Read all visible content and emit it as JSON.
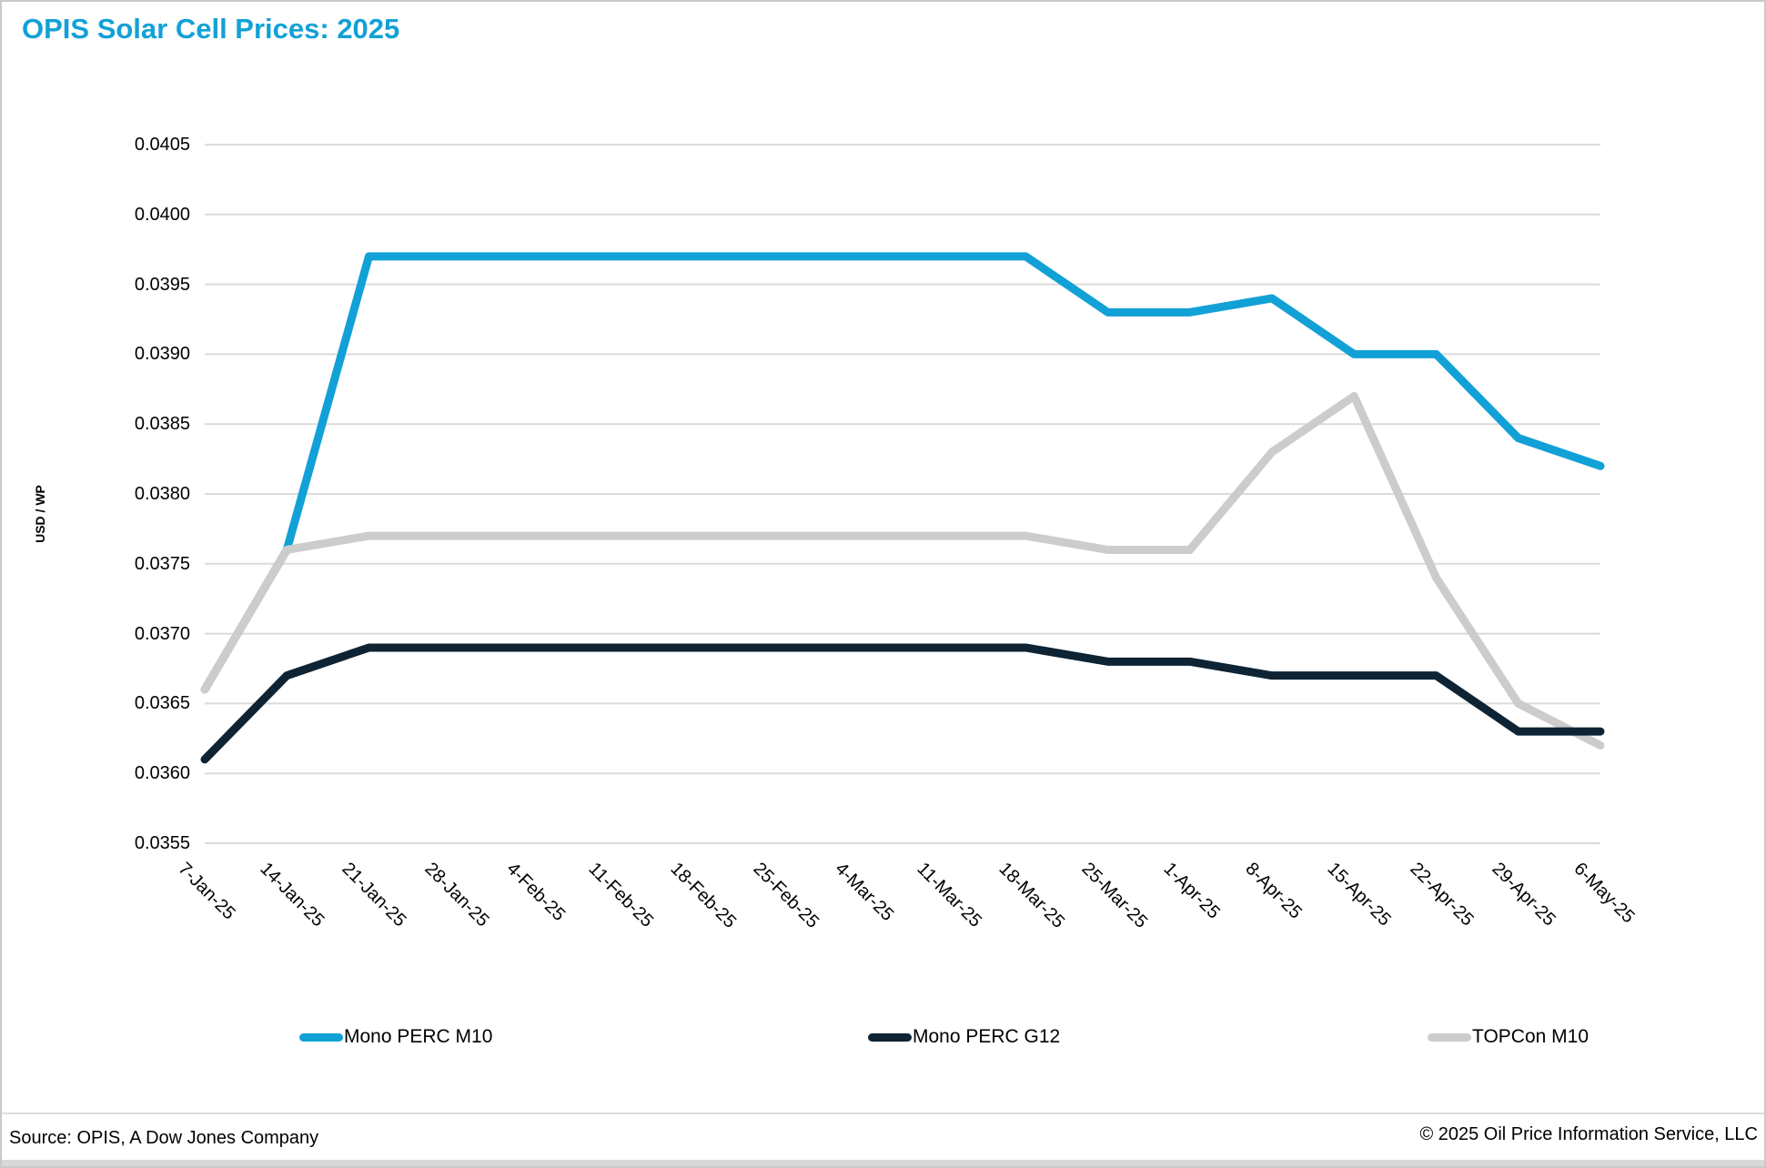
{
  "title": "OPIS Solar Cell Prices: 2025",
  "footer": {
    "source": "Source: OPIS, A Dow Jones Company",
    "copyright": "© 2025 Oil Price Information Service, LLC"
  },
  "colors": {
    "accent_cyan": "#12a1d6",
    "dark_navy": "#0e2333",
    "light_gray": "#cccccc",
    "gridline": "#dbdbdb"
  },
  "chart_data": {
    "type": "line",
    "title": "OPIS Solar Cell Prices: 2025",
    "xlabel": "",
    "ylabel": "USD / WP",
    "ylim": [
      0.0355,
      0.0405
    ],
    "y_tick_step": 0.0005,
    "y_tick_labels": [
      "0.0405",
      "0.0400",
      "0.0395",
      "0.0390",
      "0.0385",
      "0.0380",
      "0.0375",
      "0.0370",
      "0.0365",
      "0.0360",
      "0.0355"
    ],
    "grid": "horizontal",
    "legend_position": "bottom",
    "categories": [
      "7-Jan-25",
      "14-Jan-25",
      "21-Jan-25",
      "28-Jan-25",
      "4-Feb-25",
      "11-Feb-25",
      "18-Feb-25",
      "25-Feb-25",
      "4-Mar-25",
      "11-Mar-25",
      "18-Mar-25",
      "25-Mar-25",
      "1-Apr-25",
      "8-Apr-25",
      "15-Apr-25",
      "22-Apr-25",
      "29-Apr-25",
      "6-May-25"
    ],
    "series": [
      {
        "name": "Mono PERC M10",
        "color": "#12a1d6",
        "values": [
          0.0366,
          0.0376,
          0.0397,
          0.0397,
          0.0397,
          0.0397,
          0.0397,
          0.0397,
          0.0397,
          0.0397,
          0.0397,
          0.0393,
          0.0393,
          0.0394,
          0.039,
          0.039,
          0.0384,
          0.0382
        ]
      },
      {
        "name": "Mono PERC G12",
        "color": "#0e2333",
        "values": [
          0.0361,
          0.0367,
          0.0369,
          0.0369,
          0.0369,
          0.0369,
          0.0369,
          0.0369,
          0.0369,
          0.0369,
          0.0369,
          0.0368,
          0.0368,
          0.0367,
          0.0367,
          0.0367,
          0.0363,
          0.0363
        ]
      },
      {
        "name": "TOPCon M10",
        "color": "#cccccc",
        "values": [
          0.0366,
          0.0376,
          0.0377,
          0.0377,
          0.0377,
          0.0377,
          0.0377,
          0.0377,
          0.0377,
          0.0377,
          0.0377,
          0.0376,
          0.0376,
          0.0383,
          0.0387,
          0.0374,
          0.0365,
          0.0362
        ]
      }
    ]
  }
}
